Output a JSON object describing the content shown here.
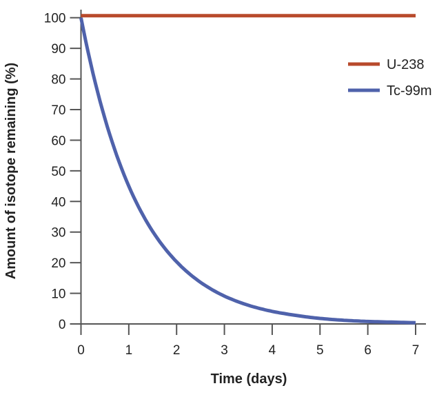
{
  "chart_data": {
    "type": "line",
    "title": "",
    "xlabel": "Time (days)",
    "ylabel": "Amount of isotope remaining (%)",
    "xlim": [
      0,
      7
    ],
    "ylim": [
      0,
      100
    ],
    "xticks": [
      "0",
      "1",
      "2",
      "3",
      "4",
      "5",
      "6",
      "7"
    ],
    "yticks": [
      "0",
      "10",
      "20",
      "30",
      "40",
      "50",
      "60",
      "70",
      "80",
      "90",
      "100"
    ],
    "grid": false,
    "legend_position": "top-right",
    "x": [
      0,
      0.5,
      1,
      1.5,
      2,
      2.5,
      3,
      3.5,
      4,
      4.5,
      5,
      5.5,
      6,
      6.5,
      7
    ],
    "series": [
      {
        "name": "U-238",
        "color": "#b84a2c",
        "values": [
          100,
          100,
          100,
          100,
          100,
          100,
          100,
          100,
          100,
          100,
          100,
          100,
          100,
          100,
          100
        ]
      },
      {
        "name": "Tc-99m",
        "color": "#4f62ab",
        "values": [
          100,
          67.1,
          45,
          30.2,
          20.3,
          13.6,
          9.1,
          6.1,
          4.1,
          2.8,
          1.8,
          1.2,
          0.8,
          0.6,
          0.4
        ]
      }
    ]
  }
}
